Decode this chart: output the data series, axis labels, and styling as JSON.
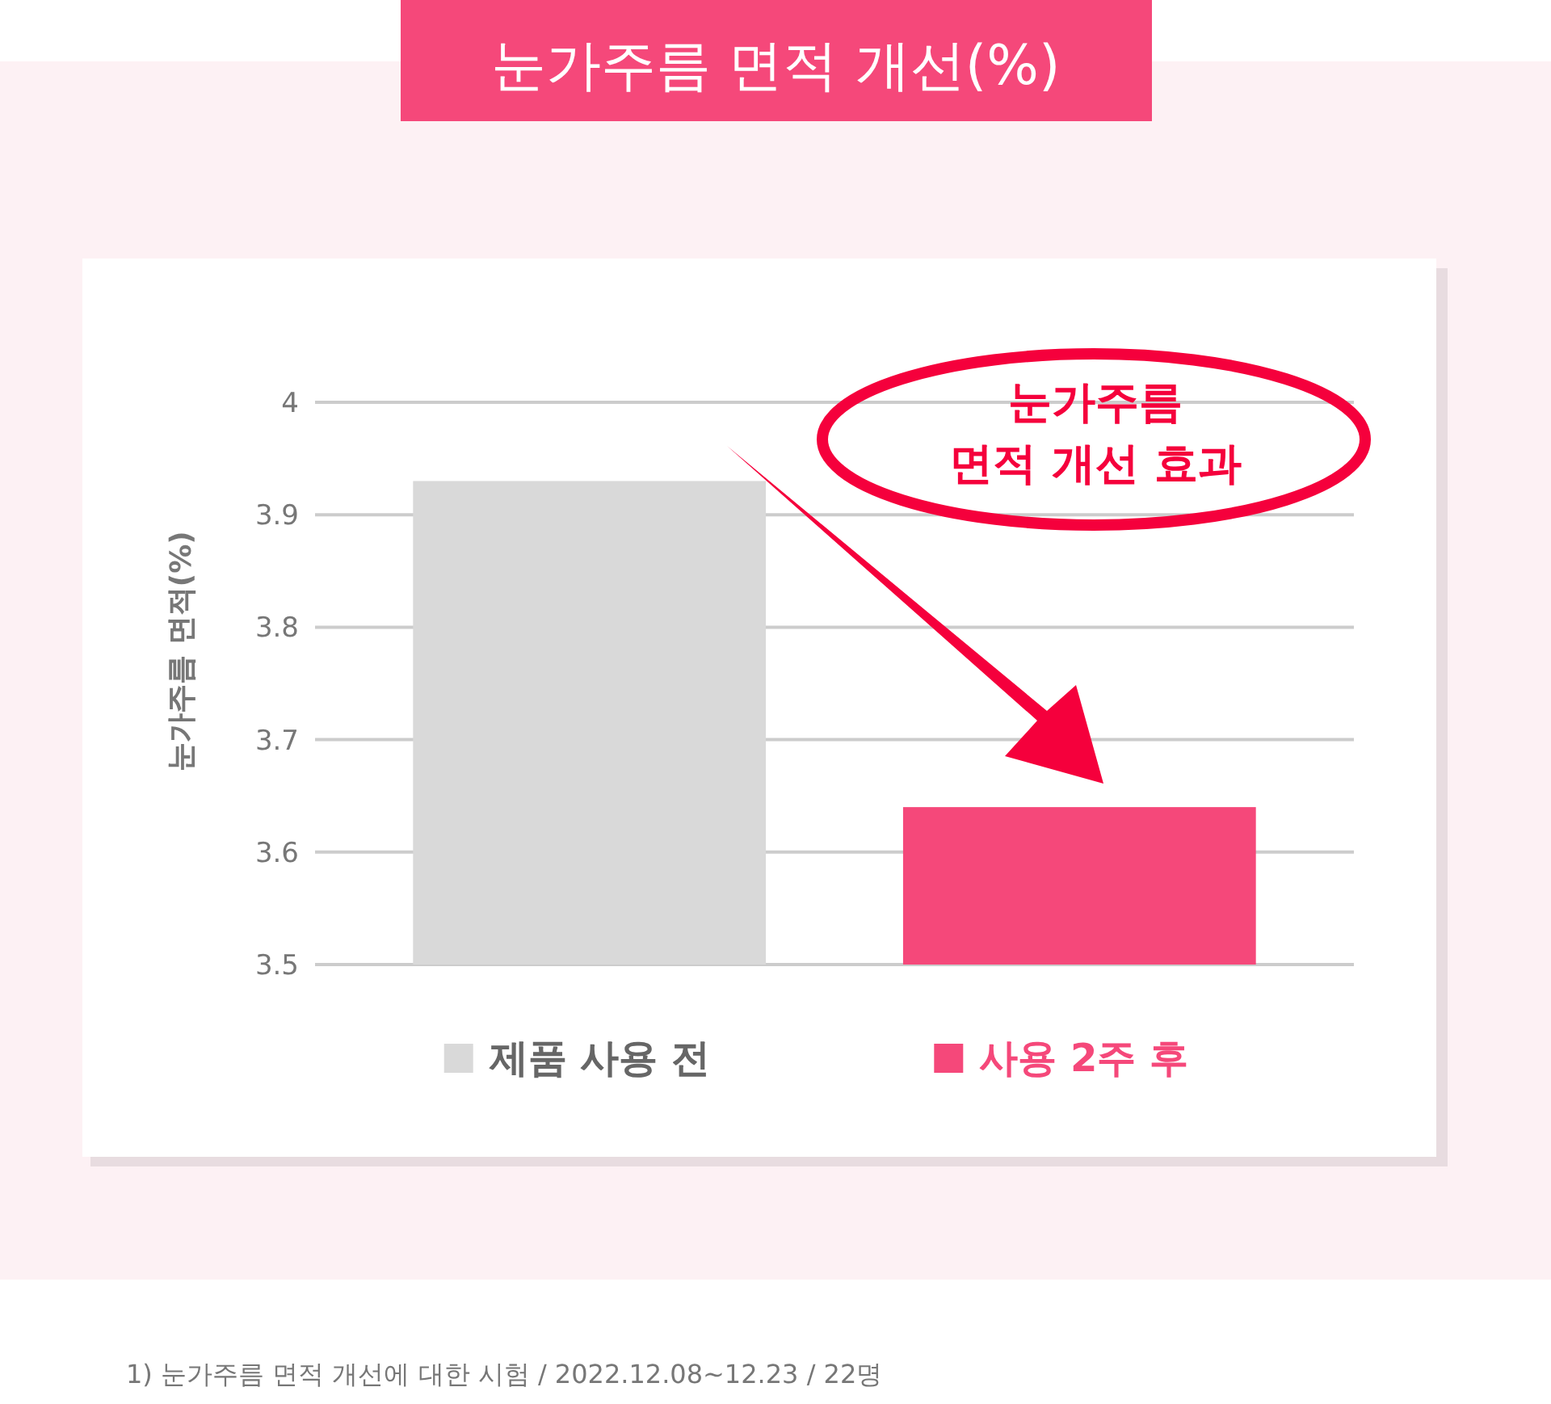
{
  "chart_data": {
    "type": "bar",
    "title": "눈가주름 면적 개선(%)",
    "ylabel": "눈가주름 면적(%)",
    "categories": [
      null,
      null
    ],
    "series": [
      {
        "name": "제품 사용 전",
        "color": "#d9d9d9",
        "values": [
          3.93,
          null
        ]
      },
      {
        "name": "사용 2주 후",
        "color": "#f5487a",
        "values": [
          null,
          3.64
        ]
      }
    ],
    "ylim": [
      3.5,
      4
    ],
    "yticks": [
      3.5,
      3.6,
      3.7,
      3.8,
      3.9,
      4
    ],
    "grid": "y",
    "legend": "bottom",
    "annotations": [
      {
        "text": "눈가주름\n면적 개선 효과"
      },
      "1) 눈가주름 면적 개선에 대한 시험 / 2022.12.08~12.23 / 22명"
    ]
  }
}
